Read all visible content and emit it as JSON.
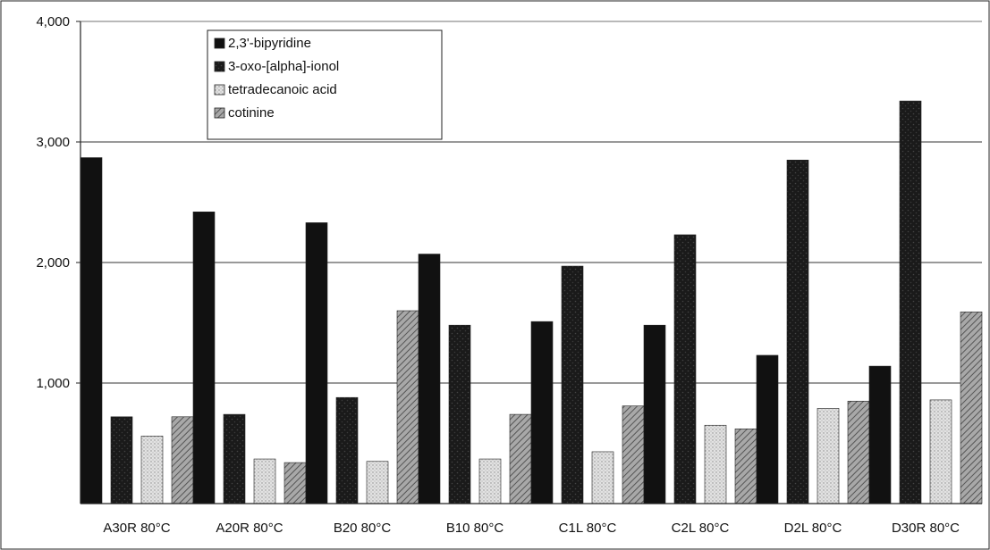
{
  "chart_data": {
    "type": "bar",
    "title": "",
    "xlabel": "",
    "ylabel": "",
    "ylim": [
      0,
      4000
    ],
    "yticks": [
      1000,
      2000,
      3000,
      4000
    ],
    "ytick_labels": [
      "1,000",
      "2,000",
      "3,000",
      "4,000"
    ],
    "grid": "horizontal at 1000, 2000, 3000",
    "legend_position": "top-left",
    "categories": [
      "A30R 80°C",
      "A20R 80°C",
      "B20 80°C",
      "B10 80°C",
      "C1L 80°C",
      "C2L 80°C",
      "D2L 80°C",
      "D30R 80°C"
    ],
    "series": [
      {
        "name": "2,3'-bipyridine",
        "values": [
          2870,
          2420,
          2330,
          2070,
          1510,
          1480,
          1230,
          1140
        ],
        "color": "#111111",
        "pattern": "solid"
      },
      {
        "name": "3-oxo-[alpha]-ionol",
        "values": [
          720,
          740,
          880,
          1480,
          1970,
          2230,
          2850,
          3340
        ],
        "color": "#1c1c1c",
        "pattern": "dark-speckle"
      },
      {
        "name": "tetradecanoic acid",
        "values": [
          560,
          370,
          350,
          370,
          430,
          650,
          790,
          860
        ],
        "color": "#d8d8d8",
        "pattern": "light-dots"
      },
      {
        "name": "cotinine",
        "values": [
          720,
          340,
          1600,
          740,
          810,
          620,
          850,
          1590
        ],
        "color": "#9a9a9a",
        "pattern": "hatched"
      }
    ]
  }
}
